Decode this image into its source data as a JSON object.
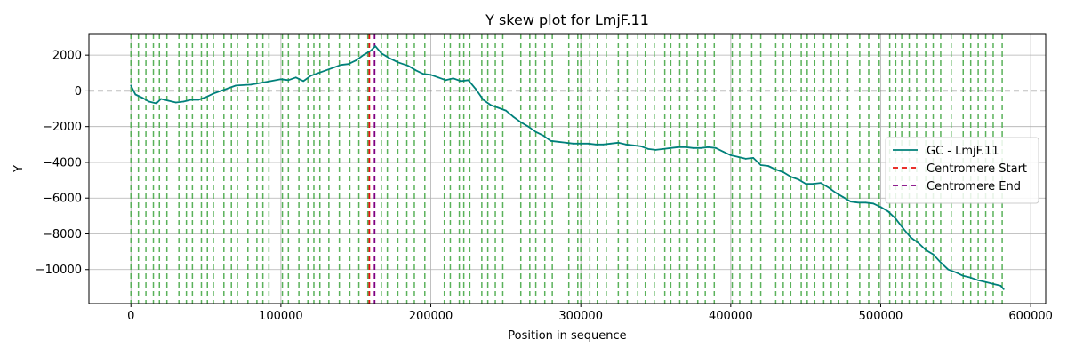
{
  "chart_data": {
    "type": "line",
    "title": "Y skew plot for LmjF.11",
    "xlabel": "Position in sequence",
    "ylabel": "Y",
    "xlim": [
      -28000,
      610000
    ],
    "ylim": [
      -11900,
      3200
    ],
    "xticks": [
      0,
      100000,
      200000,
      300000,
      400000,
      500000,
      600000
    ],
    "xtick_labels": [
      "0",
      "100000",
      "200000",
      "300000",
      "400000",
      "500000",
      "600000"
    ],
    "yticks": [
      2000,
      0,
      -2000,
      -4000,
      -6000,
      -8000,
      -10000
    ],
    "ytick_labels": [
      "2000",
      "0",
      "−2000",
      "−4000",
      "−6000",
      "−8000",
      "−10000"
    ],
    "grid": true,
    "legend_position": "center-right",
    "colors": {
      "gc_line": "#00807a",
      "centromere_start": "#e8140f",
      "centromere_end": "#800080",
      "origin_lines": "#4aaa4a",
      "zero_line": "#808080",
      "grid": "#b0b0b0"
    },
    "series": [
      {
        "name": "GC - LmjF.11",
        "x": [
          0,
          3000,
          8000,
          12000,
          17000,
          20000,
          25000,
          30000,
          35000,
          40000,
          45000,
          50000,
          55000,
          60000,
          65000,
          70000,
          80000,
          90000,
          100000,
          105000,
          110000,
          115000,
          120000,
          125000,
          130000,
          135000,
          140000,
          145000,
          150000,
          155000,
          160000,
          163000,
          167000,
          172000,
          178000,
          185000,
          190000,
          195000,
          200000,
          205000,
          210000,
          215000,
          220000,
          225000,
          230000,
          235000,
          240000,
          245000,
          250000,
          255000,
          260000,
          265000,
          270000,
          275000,
          280000,
          285000,
          290000,
          295000,
          300000,
          305000,
          310000,
          315000,
          320000,
          325000,
          330000,
          335000,
          340000,
          345000,
          350000,
          355000,
          360000,
          365000,
          370000,
          375000,
          380000,
          385000,
          390000,
          395000,
          400000,
          405000,
          410000,
          415000,
          420000,
          425000,
          430000,
          435000,
          440000,
          445000,
          450000,
          455000,
          460000,
          465000,
          470000,
          475000,
          480000,
          485000,
          490000,
          495000,
          500000,
          505000,
          510000,
          515000,
          520000,
          525000,
          530000,
          535000,
          540000,
          545000,
          550000,
          555000,
          560000,
          565000,
          570000,
          575000,
          580000,
          582000
        ],
        "y": [
          300,
          -200,
          -400,
          -600,
          -700,
          -450,
          -550,
          -650,
          -600,
          -500,
          -500,
          -350,
          -150,
          0,
          150,
          300,
          350,
          500,
          650,
          600,
          750,
          550,
          850,
          1000,
          1150,
          1300,
          1450,
          1500,
          1700,
          2000,
          2250,
          2500,
          2100,
          1850,
          1600,
          1400,
          1150,
          950,
          900,
          750,
          600,
          700,
          550,
          600,
          100,
          -500,
          -800,
          -950,
          -1100,
          -1450,
          -1750,
          -2000,
          -2300,
          -2500,
          -2800,
          -2850,
          -2900,
          -2950,
          -2950,
          -2950,
          -3000,
          -3000,
          -2950,
          -2900,
          -3000,
          -3050,
          -3100,
          -3250,
          -3300,
          -3250,
          -3200,
          -3150,
          -3150,
          -3200,
          -3200,
          -3150,
          -3200,
          -3400,
          -3600,
          -3700,
          -3800,
          -3750,
          -4150,
          -4200,
          -4400,
          -4550,
          -4800,
          -4950,
          -5200,
          -5200,
          -5150,
          -5400,
          -5700,
          -5950,
          -6200,
          -6250,
          -6250,
          -6300,
          -6500,
          -6750,
          -7150,
          -7700,
          -8200,
          -8500,
          -8900,
          -9150,
          -9600,
          -10000,
          -10150,
          -10350,
          -10450,
          -10600,
          -10700,
          -10800,
          -10900,
          -11100
        ]
      }
    ],
    "centromere_start": 159000,
    "centromere_end": 162500,
    "origin_lines_x": [
      0,
      5000,
      10000,
      15000,
      19000,
      24000,
      32000,
      37000,
      41000,
      47000,
      51000,
      55000,
      62000,
      67000,
      71000,
      78000,
      84000,
      88000,
      92000,
      101000,
      105000,
      112000,
      118000,
      122000,
      126000,
      132000,
      139000,
      146000,
      152000,
      158000,
      167000,
      171000,
      178000,
      184000,
      189000,
      196000,
      209000,
      213000,
      219000,
      222000,
      226000,
      234000,
      238000,
      243000,
      248000,
      260000,
      266000,
      270000,
      276000,
      281000,
      292000,
      298000,
      300000,
      306000,
      311000,
      317000,
      325000,
      331000,
      338000,
      343000,
      349000,
      356000,
      360000,
      366000,
      371000,
      378000,
      383000,
      389000,
      401000,
      406000,
      414000,
      420000,
      430000,
      435000,
      440000,
      447000,
      451000,
      456000,
      462000,
      467000,
      472000,
      478000,
      486000,
      492000,
      499000,
      506000,
      510000,
      514000,
      519000,
      524000,
      530000,
      535000,
      540000,
      547000,
      555000,
      560000,
      565000,
      570000,
      575000,
      581000
    ],
    "legend": [
      {
        "label": "GC - LmjF.11",
        "style": "solid",
        "color": "#00807a"
      },
      {
        "label": "Centromere Start",
        "style": "dashed",
        "color": "#e8140f"
      },
      {
        "label": "Centromere End",
        "style": "dashed",
        "color": "#800080"
      }
    ]
  }
}
